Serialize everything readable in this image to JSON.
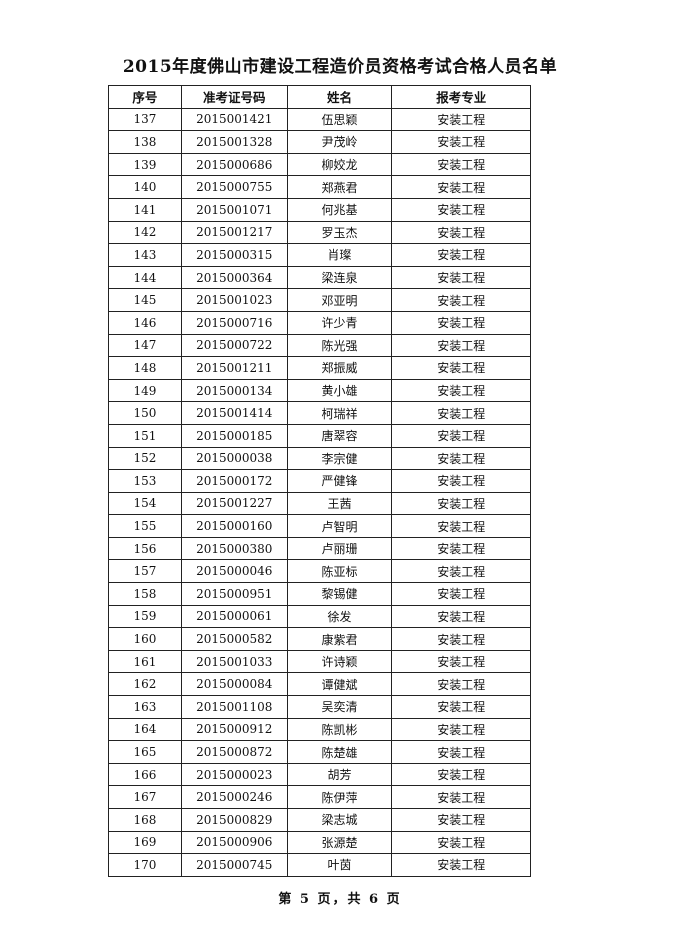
{
  "title": "2015年度佛山市建设工程造价员资格考试合格人员名单",
  "columns": [
    "序号",
    "准考证号码",
    "姓名",
    "报考专业"
  ],
  "rows": [
    [
      "137",
      "2015001421",
      "伍思颖",
      "安装工程"
    ],
    [
      "138",
      "2015001328",
      "尹茂岭",
      "安装工程"
    ],
    [
      "139",
      "2015000686",
      "柳姣龙",
      "安装工程"
    ],
    [
      "140",
      "2015000755",
      "郑燕君",
      "安装工程"
    ],
    [
      "141",
      "2015001071",
      "何兆基",
      "安装工程"
    ],
    [
      "142",
      "2015001217",
      "罗玉杰",
      "安装工程"
    ],
    [
      "143",
      "2015000315",
      "肖璨",
      "安装工程"
    ],
    [
      "144",
      "2015000364",
      "梁连泉",
      "安装工程"
    ],
    [
      "145",
      "2015001023",
      "邓亚明",
      "安装工程"
    ],
    [
      "146",
      "2015000716",
      "许少青",
      "安装工程"
    ],
    [
      "147",
      "2015000722",
      "陈光强",
      "安装工程"
    ],
    [
      "148",
      "2015001211",
      "郑振威",
      "安装工程"
    ],
    [
      "149",
      "2015000134",
      "黄小雄",
      "安装工程"
    ],
    [
      "150",
      "2015001414",
      "柯瑞祥",
      "安装工程"
    ],
    [
      "151",
      "2015000185",
      "唐翠容",
      "安装工程"
    ],
    [
      "152",
      "2015000038",
      "李宗健",
      "安装工程"
    ],
    [
      "153",
      "2015000172",
      "严健锋",
      "安装工程"
    ],
    [
      "154",
      "2015001227",
      "王茜",
      "安装工程"
    ],
    [
      "155",
      "2015000160",
      "卢智明",
      "安装工程"
    ],
    [
      "156",
      "2015000380",
      "卢丽珊",
      "安装工程"
    ],
    [
      "157",
      "2015000046",
      "陈亚标",
      "安装工程"
    ],
    [
      "158",
      "2015000951",
      "黎锡健",
      "安装工程"
    ],
    [
      "159",
      "2015000061",
      "徐发",
      "安装工程"
    ],
    [
      "160",
      "2015000582",
      "康紫君",
      "安装工程"
    ],
    [
      "161",
      "2015001033",
      "许诗颖",
      "安装工程"
    ],
    [
      "162",
      "2015000084",
      "谭健斌",
      "安装工程"
    ],
    [
      "163",
      "2015001108",
      "吴奕清",
      "安装工程"
    ],
    [
      "164",
      "2015000912",
      "陈凯彬",
      "安装工程"
    ],
    [
      "165",
      "2015000872",
      "陈楚雄",
      "安装工程"
    ],
    [
      "166",
      "2015000023",
      "胡芳",
      "安装工程"
    ],
    [
      "167",
      "2015000246",
      "陈伊萍",
      "安装工程"
    ],
    [
      "168",
      "2015000829",
      "梁志城",
      "安装工程"
    ],
    [
      "169",
      "2015000906",
      "张源楚",
      "安装工程"
    ],
    [
      "170",
      "2015000745",
      "叶茵",
      "安装工程"
    ]
  ],
  "footer": "第 5 页，共 6 页"
}
